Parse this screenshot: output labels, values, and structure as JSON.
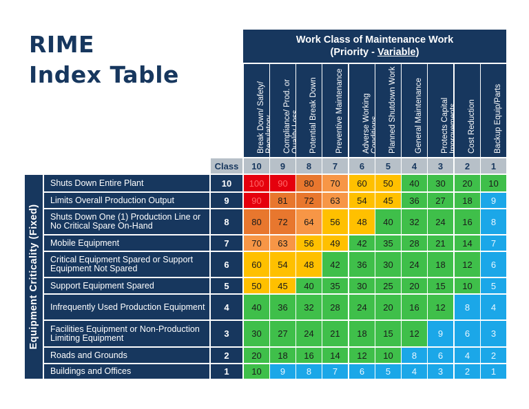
{
  "title": {
    "line1": "RIME",
    "line2": "Index Table"
  },
  "work_class_header": {
    "line1": "Work Class of Maintenance Work",
    "line2_prefix": "(Priority - ",
    "line2_underlined": "Variable",
    "line2_suffix": ")"
  },
  "criticality_label": "Equipment Criticality (Fixed)",
  "class_label": "Class",
  "columns": [
    {
      "label": "Break Down/ Safety/ Regulatory",
      "class": "10"
    },
    {
      "label": "Compliance/ Prod. or Quality Loss",
      "class": "9"
    },
    {
      "label": "Potential Break Down",
      "class": "8"
    },
    {
      "label": "Preventive Maintenance",
      "class": "7"
    },
    {
      "label": "Adverse Working Conditions",
      "class": "6"
    },
    {
      "label": "Planned Shutdown Work",
      "class": "5"
    },
    {
      "label": "General Maintenance",
      "class": "4"
    },
    {
      "label": "Protects Capital Improvements",
      "class": "3"
    },
    {
      "label": "Cost Reduction",
      "class": "2"
    },
    {
      "label": "Backup Equip/Parts",
      "class": "1"
    }
  ],
  "rows": [
    {
      "label": "Shuts Down Entire Plant",
      "class": "10",
      "values": [
        "100",
        "90",
        "80",
        "70",
        "60",
        "50",
        "40",
        "30",
        "20",
        "10"
      ]
    },
    {
      "label": "Limits Overall Production Output",
      "class": "9",
      "values": [
        "90",
        "81",
        "72",
        "63",
        "54",
        "45",
        "36",
        "27",
        "18",
        "9"
      ]
    },
    {
      "label": "Shuts Down One (1) Production Line or No Critical Spare On-Hand",
      "class": "8",
      "values": [
        "80",
        "72",
        "64",
        "56",
        "48",
        "40",
        "32",
        "24",
        "16",
        "8"
      ]
    },
    {
      "label": "Mobile Equipment",
      "class": "7",
      "values": [
        "70",
        "63",
        "56",
        "49",
        "42",
        "35",
        "28",
        "21",
        "14",
        "7"
      ]
    },
    {
      "label": "Critical Equipment Spared or Support Equipment Not Spared",
      "class": "6",
      "values": [
        "60",
        "54",
        "48",
        "42",
        "36",
        "30",
        "24",
        "18",
        "12",
        "6"
      ]
    },
    {
      "label": "Support Equipment Spared",
      "class": "5",
      "values": [
        "50",
        "45",
        "40",
        "35",
        "30",
        "25",
        "20",
        "15",
        "10",
        "5"
      ]
    },
    {
      "label": "Infrequently Used Production Equipment",
      "class": "4",
      "values": [
        "40",
        "36",
        "32",
        "28",
        "24",
        "20",
        "16",
        "12",
        "8",
        "4"
      ]
    },
    {
      "label": "Facilities Equipment or Non-Production Limiting Equipment",
      "class": "3",
      "values": [
        "30",
        "27",
        "24",
        "21",
        "18",
        "15",
        "12",
        "9",
        "6",
        "3"
      ]
    },
    {
      "label": "Roads and Grounds",
      "class": "2",
      "values": [
        "20",
        "18",
        "16",
        "14",
        "12",
        "10",
        "8",
        "6",
        "4",
        "2"
      ]
    },
    {
      "label": "Buildings and Offices",
      "class": "1",
      "values": [
        "10",
        "9",
        "8",
        "7",
        "6",
        "5",
        "4",
        "3",
        "2",
        "1"
      ]
    }
  ],
  "colors": {
    "navy": "#17375e",
    "gray": "#b7c0c8",
    "red": "#e5000d",
    "dark_orange": "#e8772e",
    "orange": "#f79646",
    "yellow": "#ffc000",
    "green": "#3fbf4a",
    "blue": "#1ba7e8"
  }
}
